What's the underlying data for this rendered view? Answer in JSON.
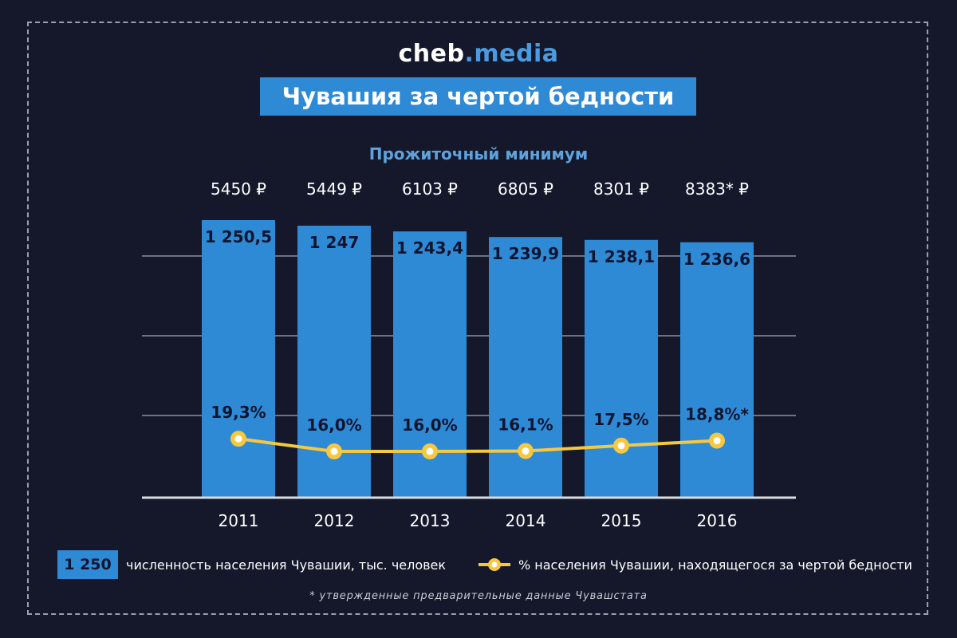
{
  "branding": {
    "logo_domain": "cheb",
    "logo_tld": ".media"
  },
  "title": "Чувашия за чертой бедности",
  "chart_data": {
    "type": "bar",
    "subtitle": "Прожиточный минимум",
    "categories": [
      "2011",
      "2012",
      "2013",
      "2014",
      "2015",
      "2016"
    ],
    "top_labels": [
      "5450 ₽",
      "5449 ₽",
      "6103 ₽",
      "6805 ₽",
      "8301 ₽",
      "8383* ₽"
    ],
    "series": [
      {
        "name": "численность населения Чувашии, тыс. человек",
        "type": "bar",
        "values": [
          1250.5,
          1247,
          1243.4,
          1239.9,
          1238.1,
          1236.6
        ],
        "labels": [
          "1 250,5",
          "1 247",
          "1 243,4",
          "1 239,9",
          "1 238,1",
          "1 236,6"
        ],
        "color": "#2f8ad6"
      },
      {
        "name": "% населения Чувашии, находящегося за чертой бедности",
        "type": "line",
        "values": [
          19.3,
          16.0,
          16.0,
          16.1,
          17.5,
          18.8
        ],
        "labels": [
          "19,3%",
          "16,0%",
          "16,0%",
          "16,1%",
          "17,5%",
          "18,8%*"
        ],
        "color": "#f5c842"
      }
    ],
    "grid": true
  },
  "legend": {
    "bar_sample_value": "1 250",
    "bar_label": "численность населения Чувашии, тыс. человек",
    "line_label": "% населения Чувашии, находящегося за чертой бедности"
  },
  "footnote": "* утвержденные предварительные данные Чувашстата",
  "colors": {
    "background": "#14182a",
    "bar": "#2f8ad6",
    "line": "#f5c842",
    "label_dark": "#0e1530"
  }
}
